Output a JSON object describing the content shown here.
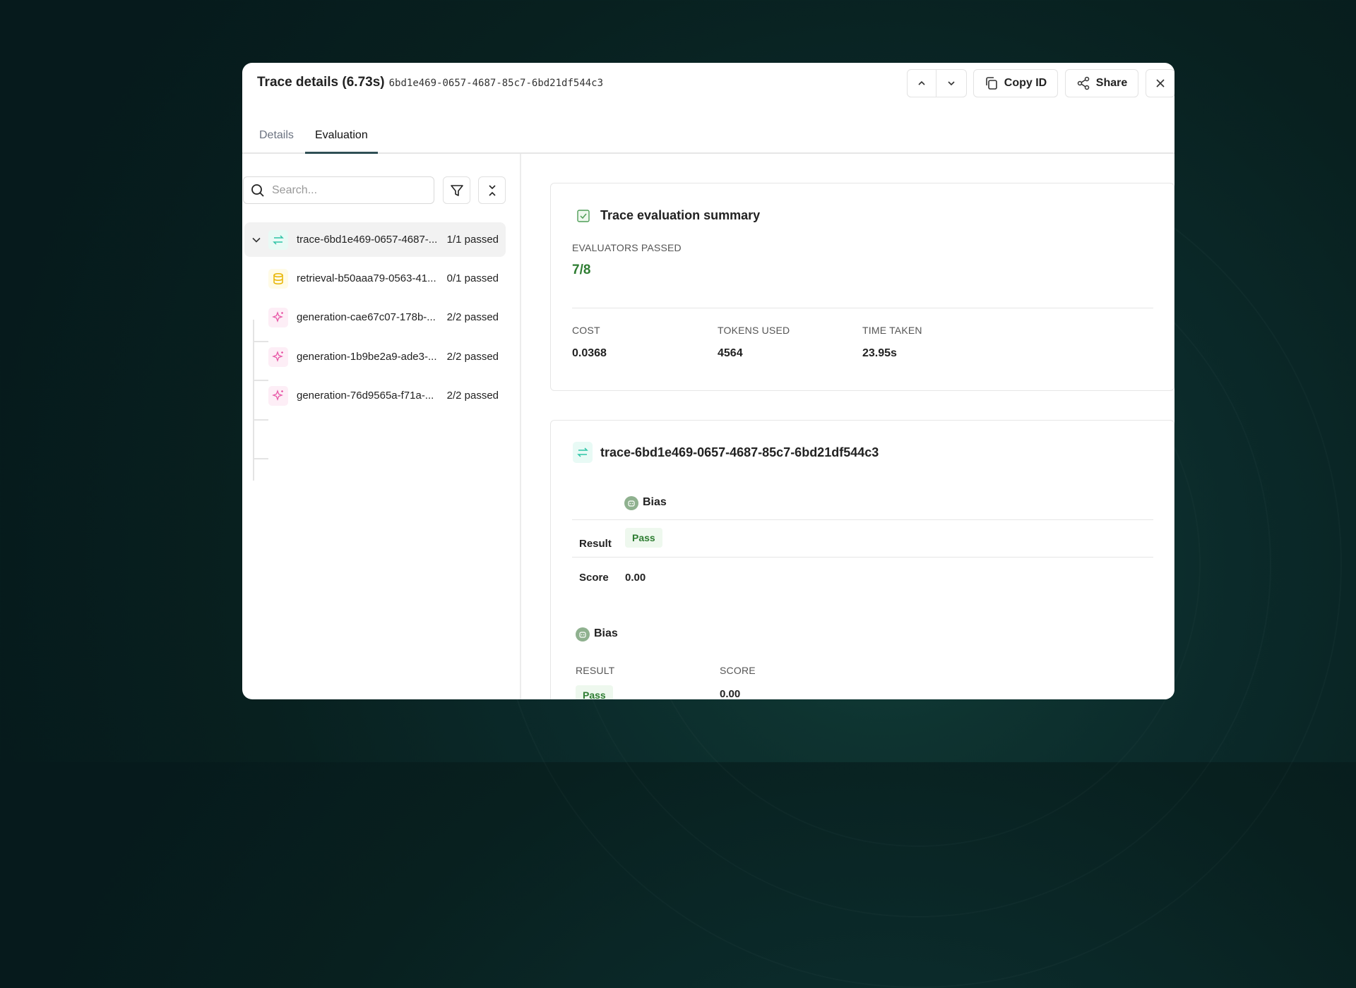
{
  "header": {
    "title": "Trace details (6.73s)",
    "trace_id": "6bd1e469-0657-4687-85c7-6bd21df544c3",
    "copy_id_label": "Copy ID",
    "share_label": "Share"
  },
  "tabs": [
    {
      "label": "Details",
      "active": false
    },
    {
      "label": "Evaluation",
      "active": true
    }
  ],
  "search": {
    "placeholder": "Search...",
    "value": ""
  },
  "tree": [
    {
      "label": "trace-6bd1e469-0657-4687-...",
      "status": "1/1 passed",
      "icon": "arrows-exchange-icon",
      "color": "#2ec4a6"
    },
    {
      "label": "retrieval-b50aaa79-0563-41...",
      "status": "0/1 passed",
      "icon": "database-icon",
      "color": "#e8b400"
    },
    {
      "label": "generation-cae67c07-178b-...",
      "status": "2/2 passed",
      "icon": "sparkle-icon",
      "color": "#e85aa8"
    },
    {
      "label": "generation-1b9be2a9-ade3-...",
      "status": "2/2 passed",
      "icon": "sparkle-icon",
      "color": "#e85aa8"
    },
    {
      "label": "generation-76d9565a-f71a-...",
      "status": "2/2 passed",
      "icon": "sparkle-icon",
      "color": "#e85aa8"
    }
  ],
  "summary": {
    "title": "Trace evaluation summary",
    "evaluators_passed_label": "EVALUATORS PASSED",
    "evaluators_passed": "7/8",
    "cost_label": "COST",
    "cost": "0.0368",
    "tokens_label": "TOKENS USED",
    "tokens": "4564",
    "time_label": "TIME TAKEN",
    "time": "23.95s"
  },
  "trace_card": {
    "title": "trace-6bd1e469-0657-4687-85c7-6bd21df544c3",
    "evaluator1": {
      "name": "Bias",
      "result_label": "Result",
      "result": "Pass",
      "score_label": "Score",
      "score": "0.00"
    },
    "evaluator2": {
      "name": "Bias",
      "result_label": "RESULT",
      "result": "Pass",
      "score_label": "SCORE",
      "score": "0.00"
    }
  },
  "colors": {
    "pass": "#2e7d32",
    "accent_tab": "#2f4f55",
    "trace": "#2ec4a6"
  }
}
